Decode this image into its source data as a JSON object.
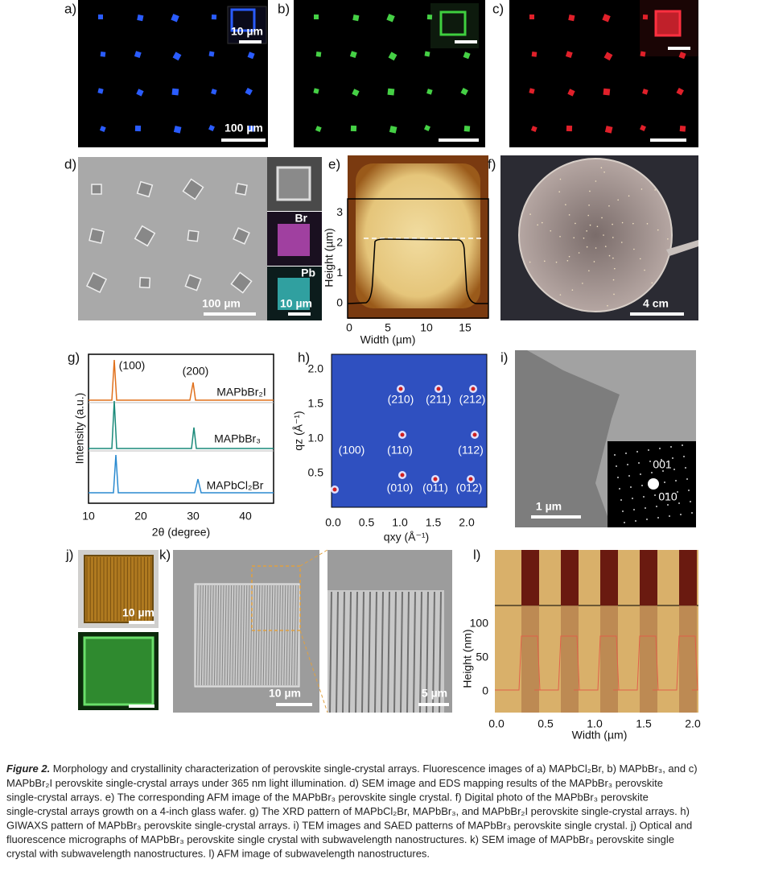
{
  "panels": {
    "a": {
      "label": "a)",
      "inset_scale": "10 µm",
      "scale": "100 µm"
    },
    "b": {
      "label": "b)"
    },
    "c": {
      "label": "c)"
    },
    "d": {
      "label": "d)",
      "scale": "100 µm",
      "map_br": "Br",
      "map_pb": "Pb",
      "map_scale": "10 µm"
    },
    "e": {
      "label": "e)",
      "y_label": "Height (µm)",
      "x_label": "Width (µm)",
      "yticks": [
        "0",
        "1",
        "2",
        "3"
      ],
      "xticks": [
        "0",
        "5",
        "10",
        "15"
      ]
    },
    "f": {
      "label": "f)",
      "scale": "4 cm"
    },
    "g": {
      "label": "g)",
      "y_label": "Intensity (a.u.)",
      "x_label": "2θ (degree)",
      "xticks": [
        "10",
        "20",
        "30",
        "40"
      ],
      "annotations": [
        "(100)",
        "(200)"
      ],
      "series": [
        "MAPbBr₂I",
        "MAPbBr₃",
        "MAPbCl₂Br"
      ]
    },
    "h": {
      "label": "h)",
      "y_label": "qz (Å⁻¹)",
      "x_label": "qxy (Å⁻¹)",
      "yticks": [
        "2.0",
        "1.5",
        "1.0",
        "0.5"
      ],
      "xticks": [
        "0.0",
        "0.5",
        "1.0",
        "1.5",
        "2.0"
      ],
      "spots": [
        "(210)",
        "(211)",
        "(212)",
        "(100)",
        "(110)",
        "(112)",
        "(010)",
        "(011)",
        "(012)"
      ]
    },
    "i": {
      "label": "i)",
      "scale": "1 µm",
      "saed": [
        "001",
        "010"
      ]
    },
    "j": {
      "label": "j)",
      "scale": "10 µm"
    },
    "k": {
      "label": "k)",
      "scale": "10 µm",
      "zoom_scale": "5 µm"
    },
    "l": {
      "label": "l)",
      "y_label": "Height (nm)",
      "x_label": "Width (µm)",
      "yticks": [
        "100",
        "50",
        "0"
      ],
      "xticks": [
        "0.0",
        "0.5",
        "1.0",
        "1.5",
        "2.0"
      ]
    }
  },
  "caption": {
    "title": "Figure 2.",
    "lines": [
      " Morphology and crystallinity characterization of perovskite single-crystal arrays. Fluorescence images of a) MAPbCl₂Br, b) MAPbBr₃, and c)",
      "MAPbBr₂I perovskite single-crystal arrays under 365 nm light illumination. d) SEM image and EDS mapping results of the MAPbBr₃ perovskite",
      "single-crystal arrays. e) The corresponding AFM image of the MAPbBr₃ perovskite single crystal. f) Digital photo of the MAPbBr₃ perovskite",
      "single-crystal arrays growth on a 4-inch glass wafer. g) The XRD pattern of MAPbCl₂Br, MAPbBr₃, and MAPbBr₂I perovskite single-crystal arrays. h)",
      "GIWAXS pattern of MAPbBr₃ perovskite single-crystal arrays. i) TEM images and SAED patterns of MAPbBr₃ perovskite single crystal. j) Optical and",
      "fluorescence micrographs of MAPbBr₃ perovskite single crystal with subwavelength nanostructures. k) SEM image of MAPbBr₃ perovskite single",
      "crystal with subwavelength nanostructures. l) AFM image of subwavelength nanostructures."
    ]
  }
}
